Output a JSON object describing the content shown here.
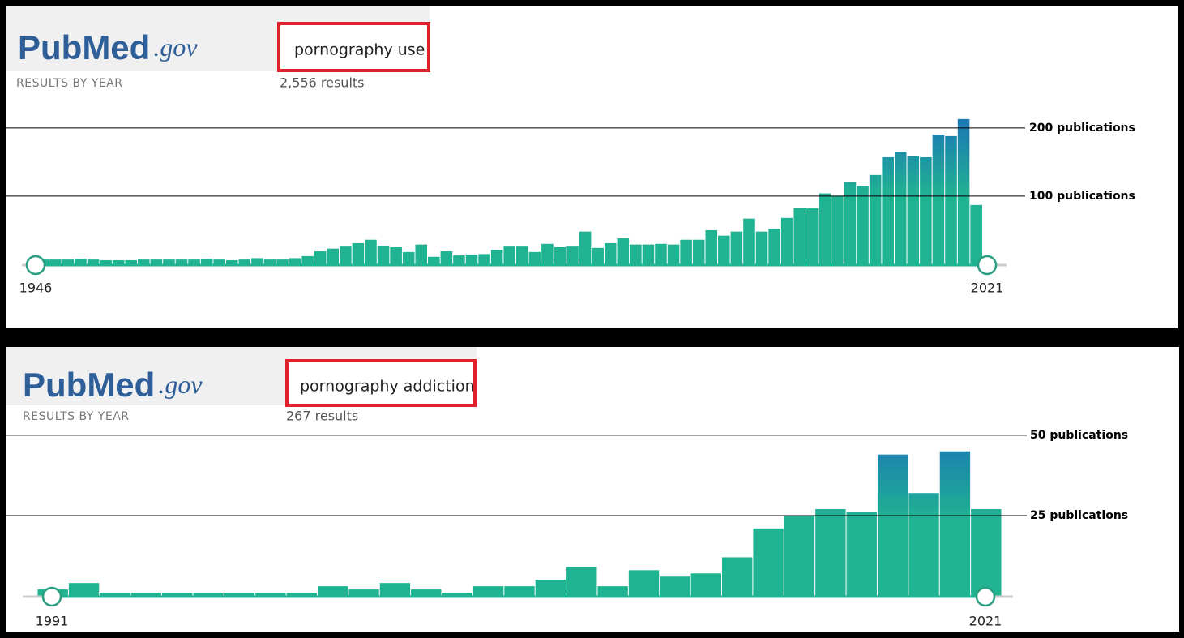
{
  "chart_data": [
    {
      "type": "bar",
      "logo": {
        "main": "PubMed",
        "domain": ".gov"
      },
      "subtitle": "RESULTS BY YEAR",
      "query": "pornography use",
      "results": "2,556 results",
      "categories": [
        "1946",
        null,
        null,
        null,
        null,
        null,
        null,
        null,
        null,
        null,
        null,
        null,
        null,
        null,
        null,
        null,
        null,
        null,
        null,
        null,
        null,
        null,
        null,
        null,
        null,
        null,
        null,
        null,
        null,
        null,
        null,
        null,
        null,
        null,
        null,
        null,
        null,
        null,
        null,
        null,
        null,
        null,
        null,
        null,
        null,
        null,
        null,
        null,
        null,
        null,
        null,
        null,
        null,
        null,
        null,
        null,
        null,
        null,
        null,
        null,
        null,
        null,
        null,
        null,
        null,
        null,
        null,
        null,
        null,
        null,
        null,
        null,
        null,
        null,
        null,
        "2021"
      ],
      "values": [
        7,
        7,
        7,
        8,
        7,
        6,
        6,
        6,
        7,
        7,
        7,
        7,
        7,
        8,
        7,
        6,
        7,
        9,
        7,
        7,
        9,
        12,
        19,
        23,
        26,
        31,
        36,
        27,
        25,
        18,
        29,
        11,
        19,
        13,
        14,
        15,
        21,
        26,
        26,
        18,
        30,
        25,
        26,
        48,
        24,
        31,
        38,
        29,
        29,
        30,
        29,
        36,
        36,
        50,
        42,
        48,
        67,
        48,
        52,
        68,
        83,
        82,
        104,
        100,
        121,
        115,
        131,
        157,
        165,
        159,
        157,
        190,
        188,
        213,
        87,
        7
      ],
      "color": "#20b391",
      "top_color": "#1b73b8",
      "ylim": [
        0,
        220
      ],
      "yticks": [
        {
          "value": 100,
          "label": "100 publications"
        },
        {
          "value": 200,
          "label": "200 publications"
        }
      ]
    },
    {
      "type": "bar",
      "logo": {
        "main": "PubMed",
        "domain": ".gov"
      },
      "subtitle": "RESULTS BY YEAR",
      "query": "pornography addiction",
      "results": "267 results",
      "categories": [
        "1991",
        null,
        null,
        null,
        null,
        null,
        null,
        null,
        null,
        null,
        null,
        null,
        null,
        null,
        null,
        null,
        null,
        null,
        null,
        null,
        null,
        null,
        null,
        null,
        null,
        null,
        null,
        null,
        null,
        null,
        "2021"
      ],
      "values": [
        2,
        4,
        1,
        1,
        1,
        1,
        1,
        1,
        1,
        3,
        2,
        4,
        2,
        1,
        3,
        3,
        5,
        9,
        3,
        8,
        6,
        7,
        12,
        21,
        25,
        27,
        26,
        44,
        32,
        45,
        27
      ],
      "color": "#20b391",
      "top_color": "#1b73b8",
      "ylim": [
        0,
        52
      ],
      "yticks": [
        {
          "value": 25,
          "label": "25 publications"
        },
        {
          "value": 50,
          "label": "50 publications"
        }
      ]
    }
  ]
}
